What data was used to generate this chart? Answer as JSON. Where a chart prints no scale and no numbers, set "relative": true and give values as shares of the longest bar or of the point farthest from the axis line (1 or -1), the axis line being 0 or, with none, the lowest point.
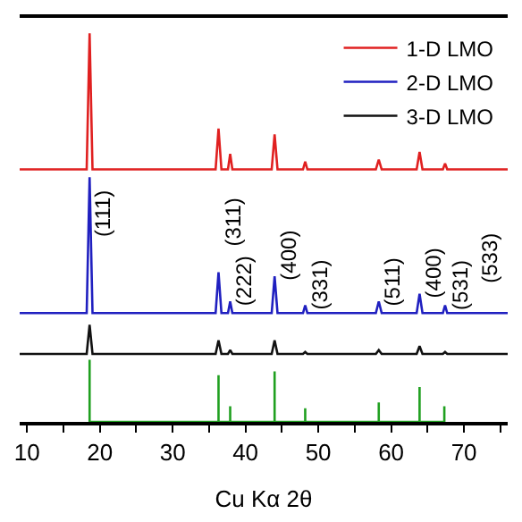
{
  "chart_data": {
    "type": "line",
    "relative": true,
    "xlabel": "Cu Kα 2θ",
    "xlim": [
      9,
      76
    ],
    "xticks": [
      10,
      {
        "value": 15,
        "label": null
      },
      20,
      {
        "value": 25,
        "label": null
      },
      30,
      {
        "value": 35,
        "label": null
      },
      40,
      {
        "value": 45,
        "label": null
      },
      50,
      {
        "value": 55,
        "label": null
      },
      60,
      {
        "value": 65,
        "label": null
      },
      70,
      {
        "value": 75,
        "label": null
      }
    ],
    "tick_labels": "x",
    "legend": "top right",
    "marker": "none",
    "line_style": "solid",
    "x": [
      9,
      18.2,
      18.6,
      19.0,
      35.9,
      36.3,
      36.7,
      37.6,
      37.9,
      38.2,
      43.6,
      44.0,
      44.4,
      47.9,
      48.2,
      48.5,
      57.9,
      58.3,
      58.7,
      63.5,
      63.9,
      64.3,
      67.1,
      67.4,
      67.7,
      76
    ],
    "series": [
      {
        "name": "1-D LMO",
        "color": "#e02020",
        "values": [
          0.65,
          0.65,
          1.0,
          0.65,
          0.65,
          0.755,
          0.65,
          0.65,
          0.69,
          0.65,
          0.65,
          0.74,
          0.65,
          0.65,
          0.67,
          0.65,
          0.65,
          0.675,
          0.65,
          0.65,
          0.695,
          0.65,
          0.65,
          0.665,
          0.65,
          0.65
        ]
      },
      {
        "name": "2-D LMO",
        "color": "#2020c0",
        "values": [
          0.28,
          0.28,
          0.63,
          0.28,
          0.28,
          0.385,
          0.28,
          0.28,
          0.31,
          0.28,
          0.28,
          0.375,
          0.28,
          0.28,
          0.3,
          0.28,
          0.28,
          0.31,
          0.28,
          0.28,
          0.33,
          0.28,
          0.28,
          0.3,
          0.28,
          0.28
        ]
      },
      {
        "name": "3-D LMO",
        "color": "#111111",
        "values": [
          0.175,
          0.175,
          0.25,
          0.175,
          0.175,
          0.21,
          0.175,
          0.175,
          0.185,
          0.175,
          0.175,
          0.21,
          0.175,
          0.175,
          0.18,
          0.175,
          0.175,
          0.185,
          0.175,
          0.175,
          0.195,
          0.175,
          0.175,
          0.18,
          0.175,
          0.175
        ]
      },
      {
        "color": "#20a020",
        "x": [
          18.6,
          18.6,
          18.6,
          36.3,
          36.3,
          36.3,
          37.9,
          37.9,
          37.9,
          44.0,
          44.0,
          44.0,
          48.2,
          48.2,
          48.2,
          58.3,
          58.3,
          58.3,
          63.9,
          63.9,
          63.9,
          67.3,
          67.3,
          67.3
        ],
        "values": [
          0,
          0.16,
          0,
          0,
          0.12,
          0,
          0,
          0.04,
          0,
          0,
          0.13,
          0,
          0,
          0.035,
          0,
          0,
          0.05,
          0,
          0,
          0.09,
          0,
          0,
          0.04,
          0
        ]
      }
    ],
    "annotations": [
      {
        "text": "(111)",
        "x": 18.6,
        "y": 0.63
      },
      {
        "text": "(311)",
        "x": 36.3,
        "y": 0.385
      },
      {
        "text": "(222)",
        "x": 37.9,
        "y": 0.31
      },
      {
        "text": "(400)",
        "x": 44.0,
        "y": 0.375
      },
      {
        "text": "(331)",
        "x": 48.2,
        "y": 0.3
      },
      {
        "text": "(511)",
        "x": 58.3,
        "y": 0.31
      },
      {
        "text": "(400)",
        "x": 63.9,
        "y": 0.33
      },
      {
        "text": "(531)",
        "x": 67.4,
        "y": 0.3
      },
      "(533)"
    ]
  }
}
